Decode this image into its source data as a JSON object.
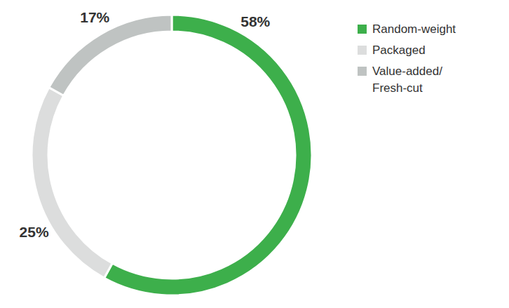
{
  "chart_data": {
    "type": "pie",
    "categories": [
      "Random-weight",
      "Packaged",
      "Value-added/Fresh-cut"
    ],
    "values": [
      58,
      25,
      17
    ],
    "value_labels": [
      "58%",
      "25%",
      "17%"
    ],
    "colors": [
      "#3daf4b",
      "#dcdddd",
      "#bfc3c2"
    ],
    "data_labels": true,
    "legend": "upper right"
  }
}
